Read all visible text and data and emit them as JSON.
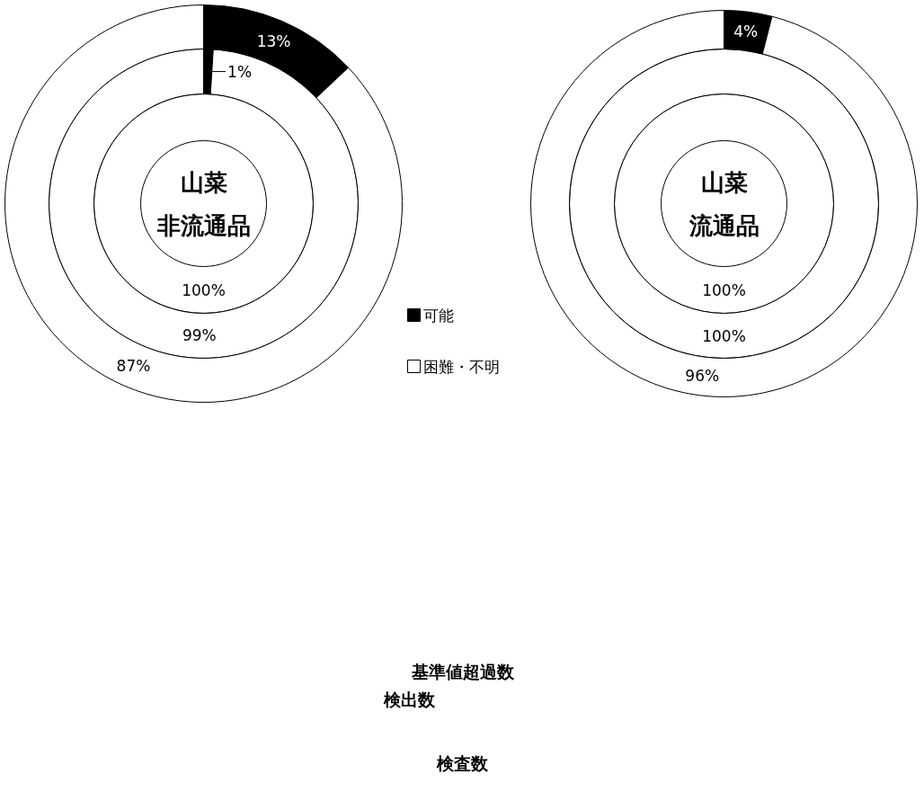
{
  "chart_data": [
    {
      "type": "donut",
      "title": "山菜",
      "subtitle": "非流通品",
      "categories": [
        "可能",
        "困難・不明"
      ],
      "colors": [
        "#000000",
        "#ffffff"
      ],
      "legend": "right",
      "series": [
        {
          "values": [
            0,
            100
          ],
          "value_labels": [
            null,
            "100%"
          ]
        },
        {
          "values": [
            1,
            99
          ],
          "value_labels": [
            "1%",
            "99%"
          ]
        },
        {
          "values": [
            13,
            87
          ],
          "value_labels": [
            "13%",
            "87%"
          ]
        }
      ]
    },
    {
      "type": "donut",
      "title": "山菜",
      "subtitle": "流通品",
      "colors": [
        "#000000",
        "#ffffff"
      ],
      "series": [
        {
          "values": [
            0,
            100
          ],
          "value_labels": [
            null,
            "100%"
          ]
        },
        {
          "values": [
            0,
            100
          ],
          "value_labels": [
            null,
            "100%"
          ]
        },
        {
          "values": [
            4,
            96
          ],
          "value_labels": [
            "4%",
            "96%"
          ]
        }
      ]
    },
    {
      "type": "other",
      "annotations": [
        "基準値超過数",
        "検出数",
        "検査数"
      ]
    }
  ]
}
